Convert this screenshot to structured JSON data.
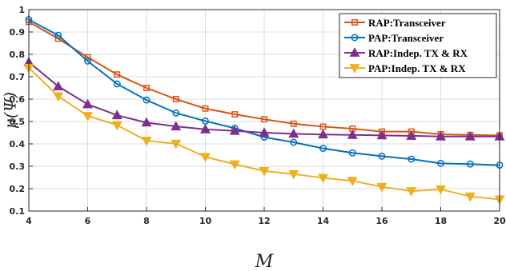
{
  "chart_data": {
    "type": "line",
    "xlabel": "M",
    "ylabel": "μ(Ψ)",
    "xlim": [
      4,
      20
    ],
    "ylim": [
      0.1,
      1.0
    ],
    "x_ticks": [
      "4",
      "6",
      "8",
      "10",
      "12",
      "14",
      "16",
      "18",
      "20"
    ],
    "y_ticks": [
      "0.1",
      "0.2",
      "0.3",
      "0.4",
      "0.5",
      "0.6",
      "0.7",
      "0.8",
      "0.9",
      "1"
    ],
    "grid": true,
    "legend_position": "top-right",
    "x": [
      4,
      5,
      6,
      7,
      8,
      9,
      10,
      11,
      12,
      13,
      14,
      15,
      16,
      17,
      18,
      19,
      20
    ],
    "series": [
      {
        "name": "RAP:Transceiver",
        "color": "#D95319",
        "marker": "square",
        "values": [
          0.945,
          0.87,
          0.787,
          0.71,
          0.65,
          0.6,
          0.558,
          0.532,
          0.51,
          0.49,
          0.477,
          0.468,
          0.455,
          0.455,
          0.443,
          0.44,
          0.438
        ]
      },
      {
        "name": "PAP:Transceiver",
        "color": "#0072BD",
        "marker": "circle",
        "values": [
          0.955,
          0.885,
          0.77,
          0.668,
          0.596,
          0.538,
          0.502,
          0.47,
          0.43,
          0.407,
          0.38,
          0.36,
          0.345,
          0.332,
          0.313,
          0.31,
          0.305
        ]
      },
      {
        "name": "RAP:Indep. TX & RX",
        "color": "#7E2F8E",
        "marker": "triangle-up",
        "values": [
          0.765,
          0.657,
          0.577,
          0.528,
          0.495,
          0.478,
          0.465,
          0.458,
          0.45,
          0.445,
          0.442,
          0.44,
          0.438,
          0.436,
          0.433,
          0.433,
          0.433
        ]
      },
      {
        "name": "PAP:Indep. TX & RX",
        "color": "#EDB120",
        "marker": "triangle-down",
        "values": [
          0.74,
          0.613,
          0.525,
          0.484,
          0.414,
          0.401,
          0.342,
          0.309,
          0.279,
          0.265,
          0.248,
          0.235,
          0.208,
          0.189,
          0.197,
          0.165,
          0.152
        ]
      }
    ]
  }
}
